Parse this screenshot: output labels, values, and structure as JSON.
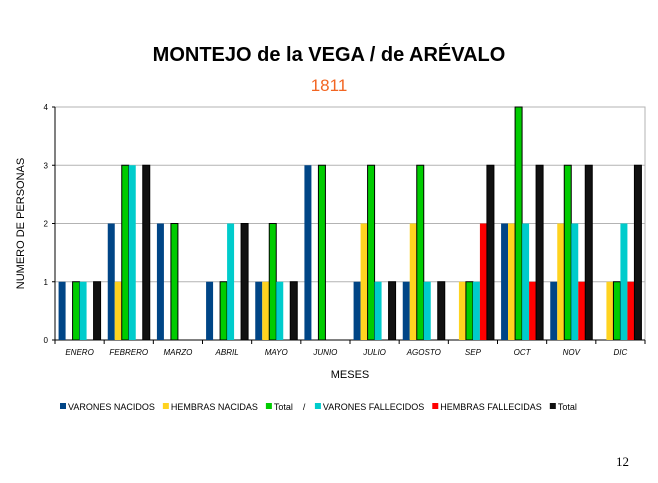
{
  "page_number": "12",
  "chart_data": {
    "type": "bar",
    "title": "MONTEJO de la VEGA / de ARÉVALO",
    "subtitle": "1811",
    "xlabel": "MESES",
    "ylabel": "NUMERO DE PERSONAS",
    "ylim": [
      0,
      4
    ],
    "yticks": [
      "0",
      "1",
      "2",
      "3",
      "4"
    ],
    "grid": true,
    "legend_position": "bottom",
    "legend_separator": "/",
    "categories": [
      "ENERO",
      "FEBRERO",
      "MARZO",
      "ABRIL",
      "MAYO",
      "JUNIO",
      "JULIO",
      "AGOSTO",
      "SEP",
      "OCT",
      "NOV",
      "DIC"
    ],
    "series": [
      {
        "name": "VARONES NACIDOS",
        "color": "#004586",
        "values": [
          1,
          2,
          2,
          1,
          1,
          3,
          1,
          1,
          0,
          2,
          1,
          0
        ]
      },
      {
        "name": "HEMBRAS NACIDAS",
        "color": "#ffd320",
        "values": [
          0,
          1,
          0,
          0,
          1,
          0,
          2,
          2,
          1,
          2,
          2,
          1
        ]
      },
      {
        "name": "Total",
        "color": "#00cc00",
        "values": [
          1,
          3,
          2,
          1,
          2,
          3,
          3,
          3,
          1,
          4,
          3,
          1
        ]
      },
      {
        "name": "VARONES FALLECIDOS",
        "color": "#00cccc",
        "values": [
          1,
          3,
          0,
          2,
          1,
          0,
          1,
          1,
          1,
          2,
          2,
          2
        ]
      },
      {
        "name": "HEMBRAS FALLECIDAS",
        "color": "#ff0000",
        "values": [
          0,
          0,
          0,
          0,
          0,
          0,
          0,
          0,
          2,
          1,
          1,
          1
        ]
      },
      {
        "name": "Total",
        "color": "#111111",
        "values": [
          1,
          3,
          0,
          2,
          1,
          0,
          1,
          1,
          3,
          3,
          3,
          3
        ]
      }
    ]
  }
}
